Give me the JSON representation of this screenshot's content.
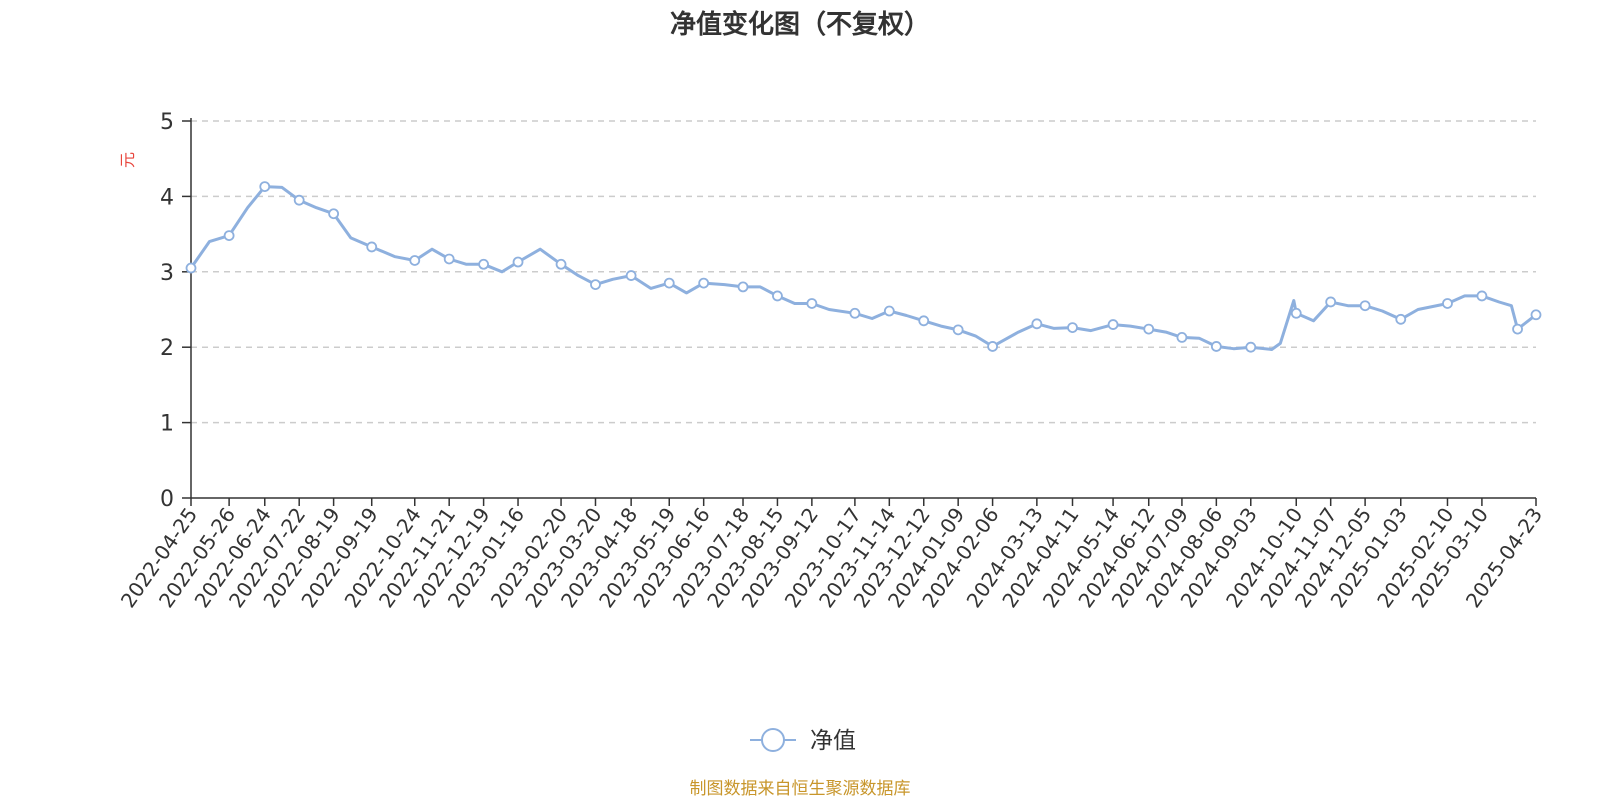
{
  "chart_data": {
    "type": "line",
    "title": "净值变化图（不复权）",
    "ylabel": "元",
    "ylim": [
      0,
      5
    ],
    "yticks": [
      0,
      1,
      2,
      3,
      4,
      5
    ],
    "grid": "y-dashed",
    "legend": "bottom-center",
    "source": "制图数据来自恒生聚源数据库",
    "colors": {
      "line": "#8EB0DE",
      "title": "#333333",
      "ylabel": "#E8453C",
      "source": "#C8962B",
      "grid": "#CCCCCC",
      "axis": "#333333"
    },
    "x_ticks": [
      "2022-04-25",
      "2022-05-26",
      "2022-06-24",
      "2022-07-22",
      "2022-08-19",
      "2022-09-19",
      "2022-10-24",
      "2022-11-21",
      "2022-12-19",
      "2023-01-16",
      "2023-02-20",
      "2023-03-20",
      "2023-04-18",
      "2023-05-19",
      "2023-06-16",
      "2023-07-18",
      "2023-08-15",
      "2023-09-12",
      "2023-10-17",
      "2023-11-14",
      "2023-12-12",
      "2024-01-09",
      "2024-02-06",
      "2024-03-13",
      "2024-04-11",
      "2024-05-14",
      "2024-06-12",
      "2024-07-09",
      "2024-08-06",
      "2024-09-03",
      "2024-10-10",
      "2024-11-07",
      "2024-12-05",
      "2025-01-03",
      "2025-02-10",
      "2025-03-10",
      "2025-04-23"
    ],
    "series": [
      {
        "name": "净值",
        "x": [
          "2022-04-25",
          "2022-05-10",
          "2022-05-26",
          "2022-06-10",
          "2022-06-24",
          "2022-07-08",
          "2022-07-22",
          "2022-08-05",
          "2022-08-19",
          "2022-09-02",
          "2022-09-19",
          "2022-10-08",
          "2022-10-24",
          "2022-11-07",
          "2022-11-21",
          "2022-12-05",
          "2022-12-19",
          "2023-01-03",
          "2023-01-16",
          "2023-02-03",
          "2023-02-20",
          "2023-03-06",
          "2023-03-20",
          "2023-04-03",
          "2023-04-18",
          "2023-05-04",
          "2023-05-19",
          "2023-06-02",
          "2023-06-16",
          "2023-07-03",
          "2023-07-18",
          "2023-08-01",
          "2023-08-15",
          "2023-08-29",
          "2023-09-12",
          "2023-09-26",
          "2023-10-17",
          "2023-10-31",
          "2023-11-14",
          "2023-11-28",
          "2023-12-12",
          "2023-12-26",
          "2024-01-09",
          "2024-01-23",
          "2024-02-06",
          "2024-02-27",
          "2024-03-13",
          "2024-03-27",
          "2024-04-11",
          "2024-04-26",
          "2024-05-14",
          "2024-05-28",
          "2024-06-12",
          "2024-06-26",
          "2024-07-09",
          "2024-07-23",
          "2024-08-06",
          "2024-08-20",
          "2024-09-03",
          "2024-09-20",
          "2024-09-27",
          "2024-10-08",
          "2024-10-10",
          "2024-10-24",
          "2024-11-07",
          "2024-11-21",
          "2024-12-05",
          "2024-12-19",
          "2025-01-03",
          "2025-01-17",
          "2025-02-10",
          "2025-02-24",
          "2025-03-10",
          "2025-03-24",
          "2025-04-03",
          "2025-04-08",
          "2025-04-23"
        ],
        "values": [
          3.05,
          3.4,
          3.48,
          3.85,
          4.13,
          4.12,
          3.95,
          3.85,
          3.77,
          3.45,
          3.33,
          3.2,
          3.15,
          3.3,
          3.17,
          3.1,
          3.1,
          3.0,
          3.13,
          3.3,
          3.1,
          2.95,
          2.83,
          2.9,
          2.95,
          2.78,
          2.85,
          2.72,
          2.85,
          2.83,
          2.8,
          2.8,
          2.68,
          2.58,
          2.58,
          2.5,
          2.45,
          2.38,
          2.48,
          2.42,
          2.35,
          2.28,
          2.23,
          2.15,
          2.01,
          2.2,
          2.31,
          2.25,
          2.26,
          2.22,
          2.3,
          2.28,
          2.24,
          2.2,
          2.13,
          2.12,
          2.01,
          1.98,
          2.0,
          1.97,
          2.05,
          2.62,
          2.45,
          2.35,
          2.6,
          2.55,
          2.55,
          2.48,
          2.37,
          2.5,
          2.58,
          2.68,
          2.68,
          2.6,
          2.55,
          2.24,
          2.43
        ],
        "marker_dates": [
          "2022-04-25",
          "2022-05-26",
          "2022-06-24",
          "2022-07-22",
          "2022-08-19",
          "2022-09-19",
          "2022-10-24",
          "2022-11-21",
          "2022-12-19",
          "2023-01-16",
          "2023-02-20",
          "2023-03-20",
          "2023-04-18",
          "2023-05-19",
          "2023-06-16",
          "2023-07-18",
          "2023-08-15",
          "2023-09-12",
          "2023-10-17",
          "2023-11-14",
          "2023-12-12",
          "2024-01-09",
          "2024-02-06",
          "2024-03-13",
          "2024-04-11",
          "2024-05-14",
          "2024-06-12",
          "2024-07-09",
          "2024-08-06",
          "2024-09-03",
          "2024-10-10",
          "2024-11-07",
          "2024-12-05",
          "2025-01-03",
          "2025-02-10",
          "2025-03-10",
          "2025-04-08",
          "2025-04-23"
        ]
      }
    ]
  }
}
